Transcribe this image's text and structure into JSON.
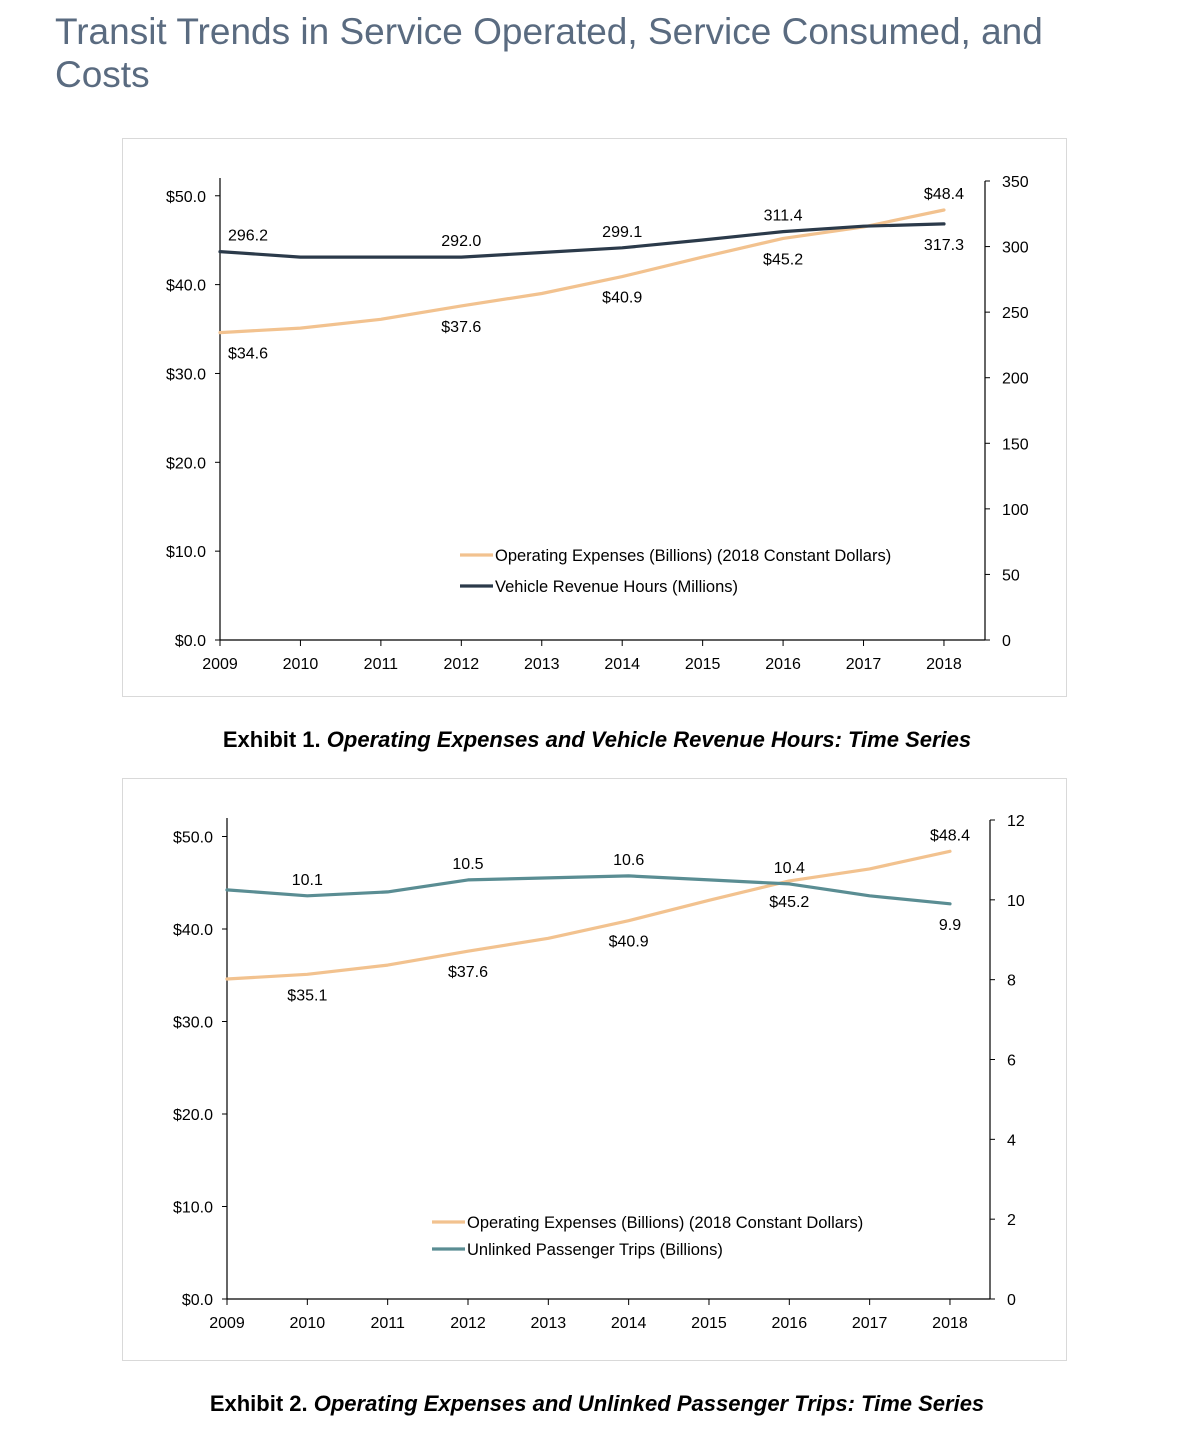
{
  "page": {
    "title": "Transit Trends in Service Operated, Service Consumed, and Costs"
  },
  "colors": {
    "opex": "#f2c28f",
    "vrh": "#2b3a4a",
    "upt": "#5a8d93",
    "axis": "#000000",
    "frame": "#d9d9d9"
  },
  "chart_data": [
    {
      "type": "line",
      "caption_prefix": "Exhibit 1.",
      "caption_title": "Operating Expenses and Vehicle Revenue Hours: Time Series",
      "x": [
        "2009",
        "2010",
        "2011",
        "2012",
        "2013",
        "2014",
        "2015",
        "2016",
        "2017",
        "2018"
      ],
      "y_left": {
        "min": 0,
        "max": 50,
        "ticks": [
          0,
          10,
          20,
          30,
          40,
          50
        ],
        "tick_labels": [
          "$0.0",
          "$10.0",
          "$20.0",
          "$30.0",
          "$40.0",
          "$50.0"
        ],
        "axis_top": 52
      },
      "y_right": {
        "min": 0,
        "max": 350,
        "ticks": [
          0,
          50,
          100,
          150,
          200,
          250,
          300,
          350
        ],
        "tick_labels": [
          "0",
          "50",
          "100",
          "150",
          "200",
          "250",
          "300",
          "350"
        ]
      },
      "series": [
        {
          "name": "Operating Expenses (Billions) (2018 Constant Dollars)",
          "axis": "left",
          "color_key": "opex",
          "values": [
            34.6,
            35.1,
            36.1,
            37.6,
            39.0,
            40.9,
            43.1,
            45.2,
            46.5,
            48.4
          ],
          "data_labels": [
            {
              "index": 0,
              "text": "$34.6",
              "pos": "below"
            },
            {
              "index": 3,
              "text": "$37.6",
              "pos": "below"
            },
            {
              "index": 5,
              "text": "$40.9",
              "pos": "below"
            },
            {
              "index": 7,
              "text": "$45.2",
              "pos": "below"
            },
            {
              "index": 9,
              "text": "$48.4",
              "pos": "above"
            }
          ]
        },
        {
          "name": "Vehicle Revenue Hours (Millions)",
          "axis": "right",
          "color_key": "vrh",
          "values": [
            296.2,
            292.0,
            292.0,
            292.0,
            295.5,
            299.1,
            305.0,
            311.4,
            315.5,
            317.3
          ],
          "data_labels": [
            {
              "index": 0,
              "text": "296.2",
              "pos": "above"
            },
            {
              "index": 3,
              "text": "292.0",
              "pos": "above"
            },
            {
              "index": 5,
              "text": "299.1",
              "pos": "above"
            },
            {
              "index": 7,
              "text": "311.4",
              "pos": "above"
            },
            {
              "index": 9,
              "text": "317.3",
              "pos": "below"
            }
          ]
        }
      ],
      "legend_placement": "bottom-right",
      "grid": false
    },
    {
      "type": "line",
      "caption_prefix": "Exhibit 2.",
      "caption_title": "Operating Expenses and Unlinked Passenger Trips: Time Series",
      "x": [
        "2009",
        "2010",
        "2011",
        "2012",
        "2013",
        "2014",
        "2015",
        "2016",
        "2017",
        "2018"
      ],
      "y_left": {
        "min": 0,
        "max": 50,
        "ticks": [
          0,
          10,
          20,
          30,
          40,
          50
        ],
        "tick_labels": [
          "$0.0",
          "$10.0",
          "$20.0",
          "$30.0",
          "$40.0",
          "$50.0"
        ],
        "axis_top": 52
      },
      "y_right": {
        "min": 0,
        "max": 12,
        "ticks": [
          0,
          2,
          4,
          6,
          8,
          10,
          12
        ],
        "tick_labels": [
          "0",
          "2",
          "4",
          "6",
          "8",
          "10",
          "12"
        ]
      },
      "series": [
        {
          "name": "Operating Expenses (Billions) (2018 Constant Dollars)",
          "axis": "left",
          "color_key": "opex",
          "values": [
            34.6,
            35.1,
            36.1,
            37.6,
            39.0,
            40.9,
            43.1,
            45.2,
            46.5,
            48.4
          ],
          "data_labels": [
            {
              "index": 1,
              "text": "$35.1",
              "pos": "below"
            },
            {
              "index": 3,
              "text": "$37.6",
              "pos": "below"
            },
            {
              "index": 5,
              "text": "$40.9",
              "pos": "below"
            },
            {
              "index": 7,
              "text": "$45.2",
              "pos": "below"
            },
            {
              "index": 9,
              "text": "$48.4",
              "pos": "above"
            }
          ]
        },
        {
          "name": "Unlinked Passenger Trips (Billions)",
          "axis": "right",
          "color_key": "upt",
          "values": [
            10.25,
            10.1,
            10.2,
            10.5,
            10.55,
            10.6,
            10.5,
            10.4,
            10.1,
            9.9
          ],
          "data_labels": [
            {
              "index": 1,
              "text": "10.1",
              "pos": "above"
            },
            {
              "index": 3,
              "text": "10.5",
              "pos": "above"
            },
            {
              "index": 5,
              "text": "10.6",
              "pos": "above"
            },
            {
              "index": 7,
              "text": "10.4",
              "pos": "above"
            },
            {
              "index": 9,
              "text": "9.9",
              "pos": "below"
            }
          ]
        }
      ],
      "legend_placement": "bottom-right",
      "grid": false
    }
  ]
}
